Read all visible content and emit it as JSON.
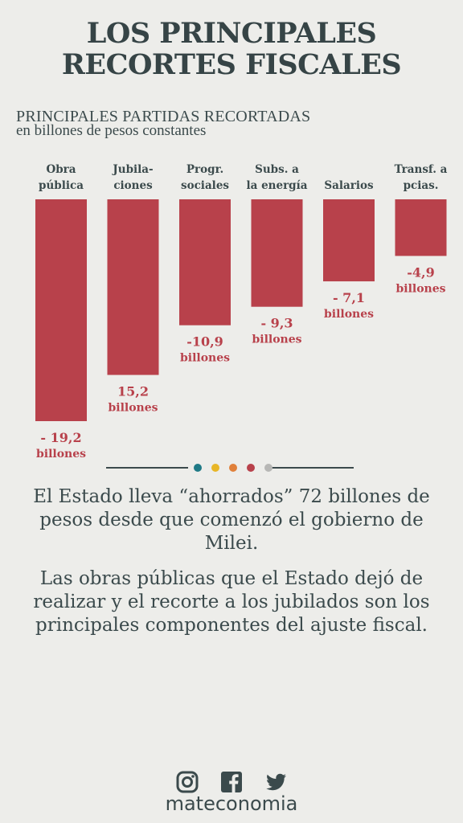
{
  "title_line1": "LOS PRINCIPALES",
  "title_line2": "RECORTES FISCALES",
  "subtitle_line1": "PRINCIPALES PARTIDAS RECORTADAS",
  "subtitle_line2": "en billones de pesos constantes",
  "chart_data": {
    "type": "bar",
    "categories": [
      [
        "Obra",
        "pública"
      ],
      [
        "Jubila-",
        "ciones"
      ],
      [
        "Progr.",
        "sociales"
      ],
      [
        "Subs. a",
        "la energía"
      ],
      [
        "Salarios"
      ],
      [
        "Transf. a",
        "pcias."
      ]
    ],
    "values": [
      -19.2,
      -15.2,
      -10.9,
      -9.3,
      -7.1,
      -4.9
    ],
    "data_labels": [
      [
        "- 19,2",
        "billones"
      ],
      [
        "15,2",
        "billones"
      ],
      [
        "-10,9",
        "billones"
      ],
      [
        "- 9,3",
        "billones"
      ],
      [
        "- 7,1",
        "billones"
      ],
      [
        "-4,9",
        "billones"
      ]
    ],
    "ylim": [
      -19.2,
      0
    ],
    "bar_color": "#b8414b",
    "label_color": "#b8414b"
  },
  "divider_dots": [
    "#1f7a86",
    "#e8b626",
    "#e0803a",
    "#b8414b",
    "#b7b7b5"
  ],
  "paragraph1": "El Estado lleva “ahorrados” 72 billones de pesos desde que comenzó el gobierno de Milei.",
  "paragraph2": "Las obras públicas que el Estado dejó de realizar y el recorte a los jubilados son los principales componentes del ajuste fiscal.",
  "social_icons": [
    "instagram-icon",
    "facebook-icon",
    "twitter-icon"
  ],
  "brand": "mateconomia"
}
